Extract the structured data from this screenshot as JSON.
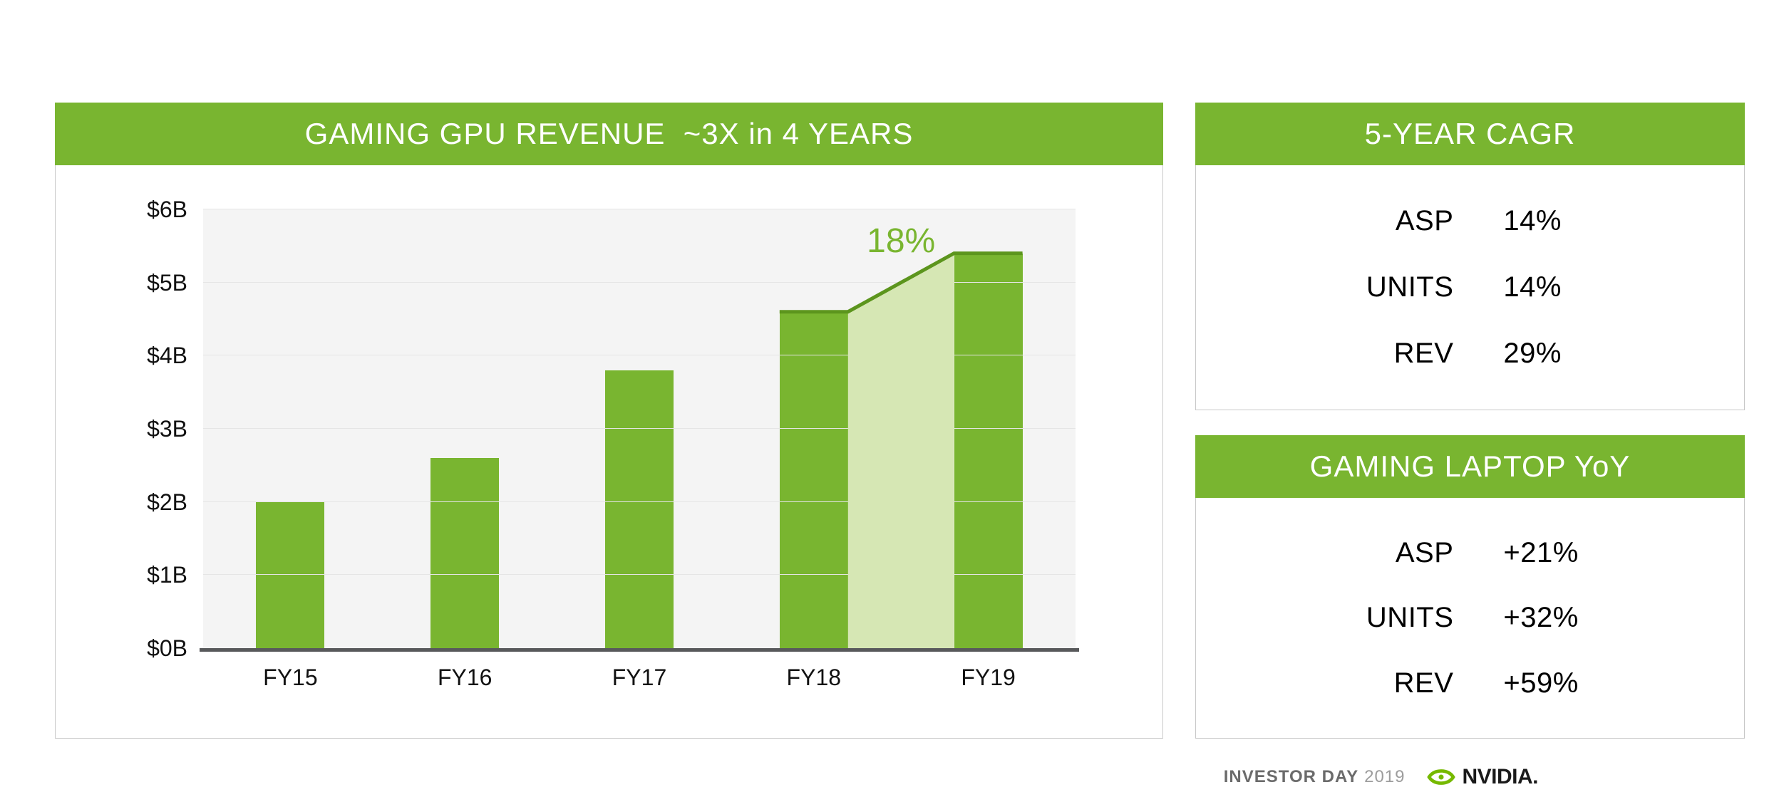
{
  "colors": {
    "accent": "#79b530",
    "growth_area": "#d6e7b4",
    "growth_line": "#5c951d",
    "plot_background": "#f4f4f4",
    "baseline": "#58595b",
    "panel_border": "#c8c8c8"
  },
  "left_panel": {
    "title": "GAMING GPU REVENUE  ~3X in 4 YEARS"
  },
  "chart_data": {
    "type": "bar",
    "title": "GAMING GPU REVENUE ~3X in 4 YEARS",
    "categories": [
      "FY15",
      "FY16",
      "FY17",
      "FY18",
      "FY19"
    ],
    "values": [
      2.0,
      2.6,
      3.8,
      4.6,
      5.4
    ],
    "value_unit": "$B",
    "ylim": [
      0,
      6
    ],
    "ytick_labels": [
      "$0B",
      "$1B",
      "$2B",
      "$3B",
      "$4B",
      "$5B",
      "$6B"
    ],
    "grid": true,
    "legend": "none",
    "annotation": {
      "text": "18%",
      "between": [
        "FY18",
        "FY19"
      ]
    }
  },
  "cagr_panel": {
    "title": "5-YEAR CAGR",
    "rows": [
      {
        "label": "ASP",
        "value": "14%"
      },
      {
        "label": "UNITS",
        "value": "14%"
      },
      {
        "label": "REV",
        "value": "29%"
      }
    ]
  },
  "laptop_panel": {
    "title": "GAMING LAPTOP YoY",
    "rows": [
      {
        "label": "ASP",
        "value": "+21%"
      },
      {
        "label": "UNITS",
        "value": "+32%"
      },
      {
        "label": "REV",
        "value": "+59%"
      }
    ]
  },
  "footer": {
    "event": "INVESTOR DAY",
    "year": "2019",
    "brand": "NVIDIA.",
    "logo_icon": "nvidia-eye-icon"
  }
}
